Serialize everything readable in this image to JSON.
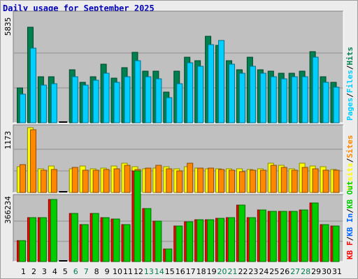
{
  "title": "Daily usage for September 2025",
  "colors": {
    "hits": "#007f4f",
    "files": "#00cfff",
    "sites": "#ff8800",
    "visits": "#ffff00",
    "kb_in": "#0066ff",
    "kb_out": "#00cc00",
    "kb_f": "#ff0000",
    "weekend_label": "#00804f",
    "weekday_label": "#000000",
    "legend_sep": "#000000"
  },
  "chart_data": [
    {
      "type": "bar",
      "name": "hits-files",
      "x": [
        1,
        2,
        3,
        4,
        5,
        6,
        7,
        8,
        9,
        10,
        11,
        12,
        13,
        14,
        15,
        16,
        17,
        18,
        19,
        20,
        21,
        22,
        23,
        24,
        25,
        26,
        27,
        28,
        29,
        30,
        31
      ],
      "weekend_days": [
        6,
        7,
        13,
        14,
        20,
        21,
        27,
        28
      ],
      "ytick_label": "5835",
      "ymax": 5835,
      "legend": [
        "Pages",
        "/",
        "Files",
        "/",
        "Hits"
      ],
      "legend_colors": [
        "files",
        "legend_sep",
        "files",
        "legend_sep",
        "hits"
      ],
      "series": [
        {
          "name": "Hits",
          "color": "hits",
          "values": [
            1850,
            5110,
            2460,
            2460,
            0,
            2840,
            2170,
            2460,
            3120,
            2370,
            2930,
            3770,
            2740,
            2740,
            1640,
            2740,
            3490,
            3300,
            4600,
            4120,
            3300,
            2840,
            3490,
            2840,
            2740,
            2650,
            2650,
            2740,
            3780,
            2460,
            2170
          ]
        },
        {
          "name": "Files",
          "color": "files",
          "values": [
            1510,
            3960,
            1990,
            2070,
            0,
            2460,
            1990,
            2270,
            2640,
            2170,
            2460,
            3290,
            2460,
            2350,
            1330,
            2070,
            3210,
            3020,
            4150,
            4400,
            3110,
            2640,
            3020,
            2640,
            2460,
            2360,
            2460,
            2460,
            3490,
            2170,
            1890
          ]
        }
      ]
    },
    {
      "type": "bar",
      "name": "sites-visits",
      "x": [
        1,
        2,
        3,
        4,
        5,
        6,
        7,
        8,
        9,
        10,
        11,
        12,
        13,
        14,
        15,
        16,
        17,
        18,
        19,
        20,
        21,
        22,
        23,
        24,
        25,
        26,
        27,
        28,
        29,
        30,
        31
      ],
      "ytick_label": "1173",
      "ymax": 1173,
      "legend": [
        "Visits",
        "/",
        "Sites"
      ],
      "legend_colors": [
        "visits",
        "legend_sep",
        "sites"
      ],
      "series": [
        {
          "name": "Visits",
          "color": "visits",
          "values": [
            460,
            1160,
            420,
            480,
            0,
            420,
            480,
            420,
            440,
            480,
            520,
            460,
            420,
            440,
            460,
            420,
            460,
            440,
            420,
            420,
            420,
            420,
            410,
            420,
            520,
            490,
            420,
            520,
            470,
            460,
            410
          ]
        },
        {
          "name": "Sites",
          "color": "sites",
          "values": [
            500,
            1120,
            400,
            410,
            0,
            450,
            400,
            400,
            410,
            420,
            490,
            410,
            440,
            490,
            430,
            390,
            530,
            440,
            440,
            410,
            400,
            380,
            400,
            400,
            490,
            450,
            400,
            450,
            420,
            400,
            400
          ]
        }
      ]
    },
    {
      "type": "bar",
      "name": "kbytes",
      "x": [
        1,
        2,
        3,
        4,
        5,
        6,
        7,
        8,
        9,
        10,
        11,
        12,
        13,
        14,
        15,
        16,
        17,
        18,
        19,
        20,
        21,
        22,
        23,
        24,
        25,
        26,
        27,
        28,
        29,
        30,
        31
      ],
      "ytick_label": "366234",
      "ymax": 366234,
      "legend": [
        "KB F",
        "/",
        "KB In",
        "/",
        "KB Out"
      ],
      "legend_colors": [
        "kb_f",
        "legend_sep",
        "kb_in",
        "legend_sep",
        "kb_out"
      ],
      "series": [
        {
          "name": "KB F",
          "color": "kb_f",
          "values": [
            120000,
            250000,
            248000,
            350000,
            0,
            270000,
            208000,
            270000,
            250000,
            240000,
            210000,
            510000,
            300000,
            230000,
            70000,
            200000,
            225000,
            238000,
            238000,
            245000,
            250000,
            320000,
            250000,
            290000,
            285000,
            285000,
            285000,
            290000,
            330000,
            210000,
            200000
          ]
        },
        {
          "name": "KB Out",
          "color": "kb_out",
          "values": [
            120000,
            250000,
            248000,
            350000,
            0,
            270000,
            208000,
            270000,
            250000,
            240000,
            210000,
            510000,
            300000,
            230000,
            70000,
            200000,
            225000,
            238000,
            238000,
            245000,
            250000,
            320000,
            250000,
            290000,
            285000,
            285000,
            285000,
            290000,
            330000,
            210000,
            200000
          ]
        }
      ]
    }
  ]
}
